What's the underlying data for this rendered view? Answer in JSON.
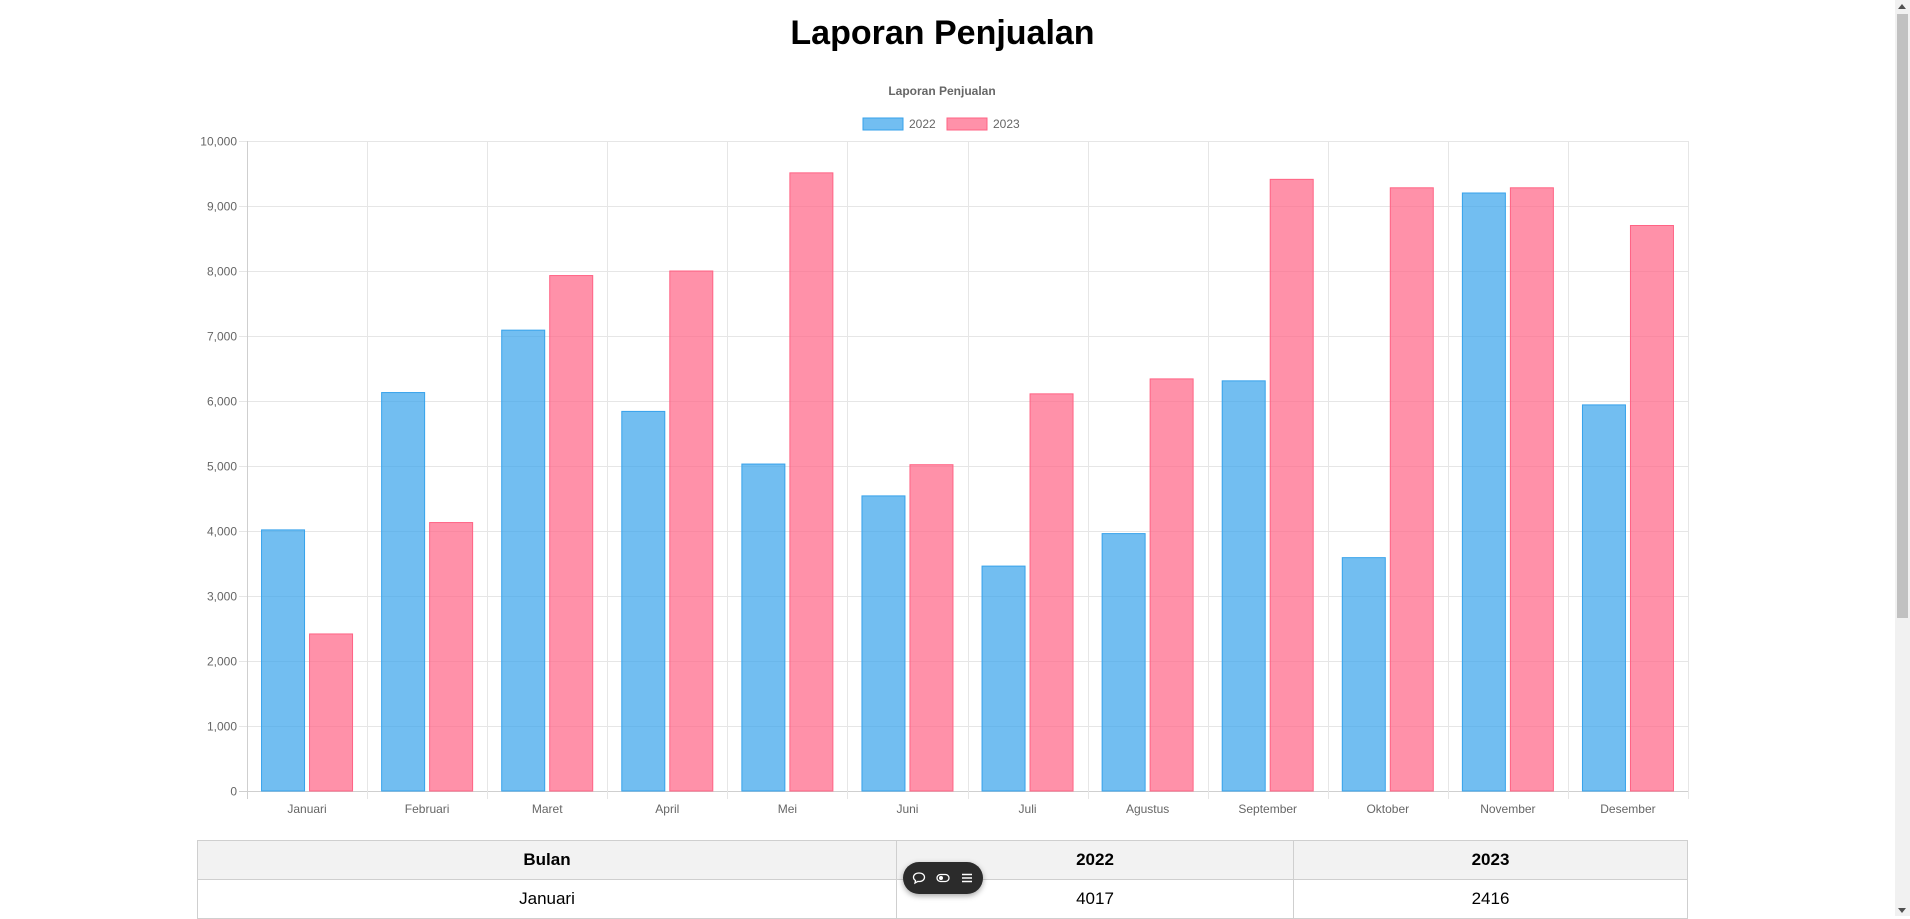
{
  "page": {
    "title": "Laporan Penjualan"
  },
  "chart_data": {
    "type": "bar",
    "title": "Laporan Penjualan",
    "categories": [
      "Januari",
      "Februari",
      "Maret",
      "April",
      "Mei",
      "Juni",
      "Juli",
      "Agustus",
      "September",
      "Oktober",
      "November",
      "Desember"
    ],
    "series": [
      {
        "name": "2022",
        "color": "#36a2eb",
        "values": [
          4017,
          6130,
          7090,
          5840,
          5030,
          4540,
          3460,
          3960,
          6310,
          3590,
          9200,
          5940
        ]
      },
      {
        "name": "2023",
        "color": "#ff6384",
        "values": [
          2416,
          4130,
          7930,
          8000,
          9510,
          5020,
          6110,
          6340,
          9410,
          9280,
          9280,
          8700
        ]
      }
    ],
    "ylim": [
      0,
      10000
    ],
    "yticks": [
      0,
      1000,
      2000,
      3000,
      4000,
      5000,
      6000,
      7000,
      8000,
      9000,
      10000
    ],
    "ytick_labels": [
      "0",
      "1,000",
      "2,000",
      "3,000",
      "4,000",
      "5,000",
      "6,000",
      "7,000",
      "8,000",
      "9,000",
      "10,000"
    ],
    "grid": true,
    "legend": "top-center"
  },
  "table": {
    "headers": [
      "Bulan",
      "2022",
      "2023"
    ],
    "rows": [
      {
        "month": "Januari",
        "v2022": "4017",
        "v2023": "2416"
      }
    ]
  },
  "toolbar": {
    "icons": [
      "chat-bubble-icon",
      "toggle-icon",
      "menu-icon"
    ]
  }
}
